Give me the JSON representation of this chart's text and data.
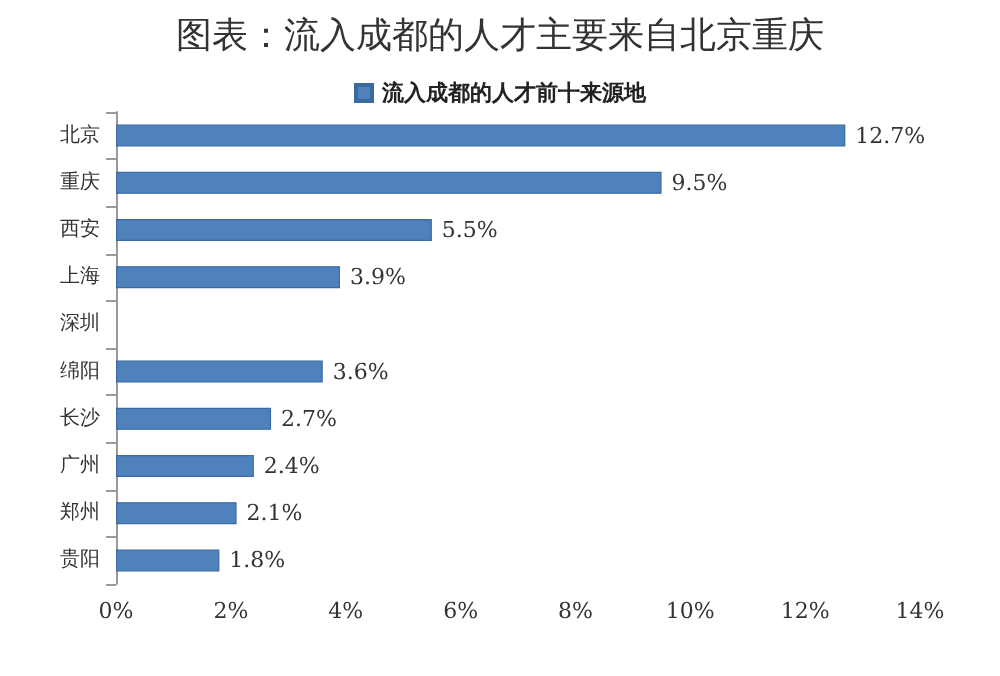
{
  "chart_data": {
    "type": "bar",
    "orientation": "horizontal",
    "title": "图表：流入成都的人才主要来自北京重庆",
    "categories": [
      "北京",
      "重庆",
      "西安",
      "上海",
      "深圳",
      "绵阳",
      "长沙",
      "广州",
      "郑州",
      "贵阳"
    ],
    "series": [
      {
        "name": "流入成都的人才前十来源地",
        "color": "#4f81bd",
        "values": [
          12.7,
          9.5,
          5.5,
          3.9,
          null,
          3.6,
          2.7,
          2.4,
          2.1,
          1.8
        ],
        "value_labels": [
          "12.7%",
          "9.5%",
          "5.5%",
          "3.9%",
          null,
          "3.6%",
          "2.7%",
          "2.4%",
          "2.1%",
          "1.8%"
        ]
      }
    ],
    "xlim": [
      0,
      14
    ],
    "xticks": [
      {
        "value": 0,
        "label": "0%"
      },
      {
        "value": 2,
        "label": "2%"
      },
      {
        "value": 4,
        "label": "4%"
      },
      {
        "value": 6,
        "label": "6%"
      },
      {
        "value": 8,
        "label": "8%"
      },
      {
        "value": 10,
        "label": "10%"
      },
      {
        "value": 12,
        "label": "12%"
      },
      {
        "value": 14,
        "label": "14%"
      }
    ],
    "grid": false,
    "legend": "top"
  }
}
